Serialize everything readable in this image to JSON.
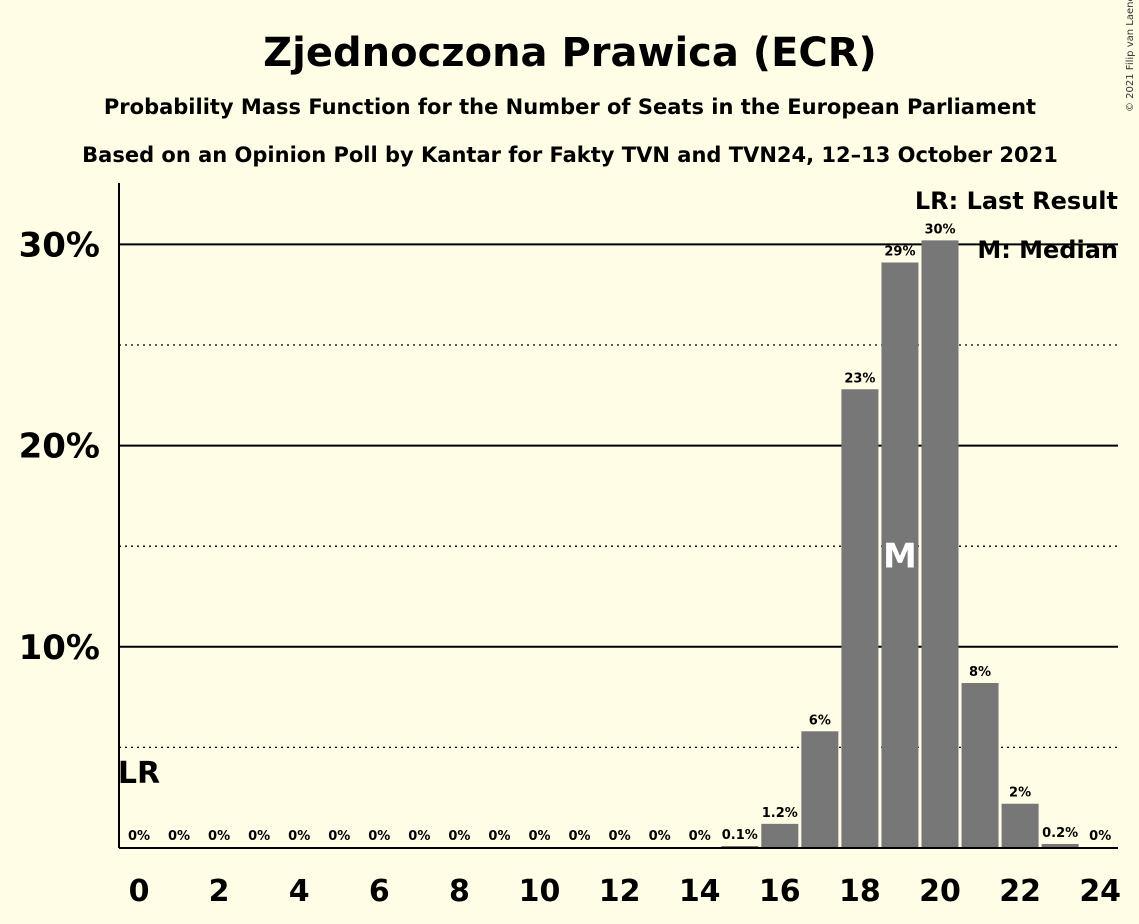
{
  "chart_data": {
    "type": "bar",
    "title": "Zjednoczona Prawica (ECR)",
    "subtitle": "Probability Mass Function for the Number of Seats in the European Parliament",
    "subtitle2": "Based on an Opinion Poll by Kantar for Fakty TVN and TVN24, 12–13 October 2021",
    "copyright": "© 2021 Filip van Laenen",
    "x": [
      0,
      1,
      2,
      3,
      4,
      5,
      6,
      7,
      8,
      9,
      10,
      11,
      12,
      13,
      14,
      15,
      16,
      17,
      18,
      19,
      20,
      21,
      22,
      23,
      24
    ],
    "values": [
      0,
      0,
      0,
      0,
      0,
      0,
      0,
      0,
      0,
      0,
      0,
      0,
      0,
      0,
      0,
      0.1,
      1.2,
      5.8,
      22.8,
      29.1,
      30.2,
      8.2,
      2.2,
      0.2,
      0
    ],
    "labels": [
      "0%",
      "0%",
      "0%",
      "0%",
      "0%",
      "0%",
      "0%",
      "0%",
      "0%",
      "0%",
      "0%",
      "0%",
      "0%",
      "0%",
      "0%",
      "0.1%",
      "1.2%",
      "6%",
      "23%",
      "29%",
      "30%",
      "8%",
      "2%",
      "0.2%",
      "0%"
    ],
    "xticks": [
      "0",
      "2",
      "4",
      "6",
      "8",
      "10",
      "12",
      "14",
      "16",
      "18",
      "20",
      "22",
      "24"
    ],
    "yticks": [
      "10%",
      "20%",
      "30%"
    ],
    "ylim": [
      0,
      33
    ],
    "grid": true,
    "last_result_seat": 0,
    "median_seat": 19,
    "lr_marker": "LR",
    "median_marker": "M",
    "legend": [
      "LR: Last Result",
      "M: Median"
    ],
    "legend_position": "top-right",
    "colors": {
      "bar": "#777777",
      "background": "#fffde5",
      "axis": "#000000"
    }
  }
}
